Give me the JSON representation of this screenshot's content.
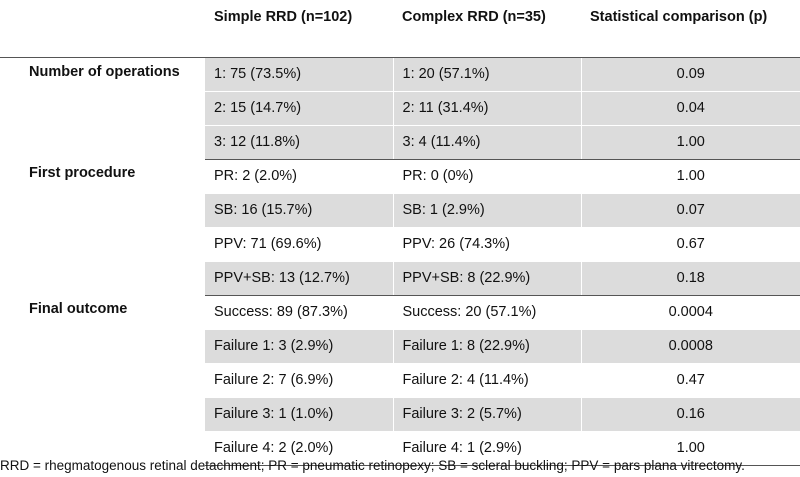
{
  "header": {
    "col0": "",
    "col1": "Simple RRD (n=102)",
    "col2": "Complex RRD (n=35)",
    "col3": "Statistical comparison (p)"
  },
  "groups": [
    {
      "label": "Number of operations",
      "rows": [
        {
          "simple": "1: 75 (73.5%)",
          "complex": "1: 20 (57.1%)",
          "p": "0.09"
        },
        {
          "simple": "2: 15 (14.7%)",
          "complex": "2: 11 (31.4%)",
          "p": "0.04"
        },
        {
          "simple": "3: 12 (11.8%)",
          "complex": "3: 4 (11.4%)",
          "p": "1.00"
        }
      ]
    },
    {
      "label": "First procedure",
      "rows": [
        {
          "simple": "PR: 2 (2.0%)",
          "complex": "PR: 0 (0%)",
          "p": "1.00"
        },
        {
          "simple": "SB: 16 (15.7%)",
          "complex": "SB: 1 (2.9%)",
          "p": "0.07"
        },
        {
          "simple": "PPV: 71 (69.6%)",
          "complex": "PPV: 26 (74.3%)",
          "p": "0.67"
        },
        {
          "simple": "PPV+SB: 13 (12.7%)",
          "complex": "PPV+SB: 8 (22.9%)",
          "p": "0.18"
        }
      ]
    },
    {
      "label": "Final outcome",
      "rows": [
        {
          "simple": "Success: 89 (87.3%)",
          "complex": "Success: 20 (57.1%)",
          "p": "0.0004"
        },
        {
          "simple": "Failure 1: 3 (2.9%)",
          "complex": "Failure 1: 8 (22.9%)",
          "p": "0.0008"
        },
        {
          "simple": "Failure 2: 7 (6.9%)",
          "complex": "Failure 2: 4 (11.4%)",
          "p": "0.47"
        },
        {
          "simple": "Failure 3: 1 (1.0%)",
          "complex": "Failure 3: 2 (5.7%)",
          "p": "0.16"
        },
        {
          "simple": "Failure 4: 2 (2.0%)",
          "complex": "Failure 4: 1 (2.9%)",
          "p": "1.00"
        }
      ]
    }
  ],
  "footnote": "RRD = rhegmatogenous retinal detachment; PR = pneumatic retinopexy; SB = scleral buckling; PPV = pars plana vitrectomy.",
  "colors": {
    "shade": "#dcdcdc",
    "rule": "#555555"
  }
}
